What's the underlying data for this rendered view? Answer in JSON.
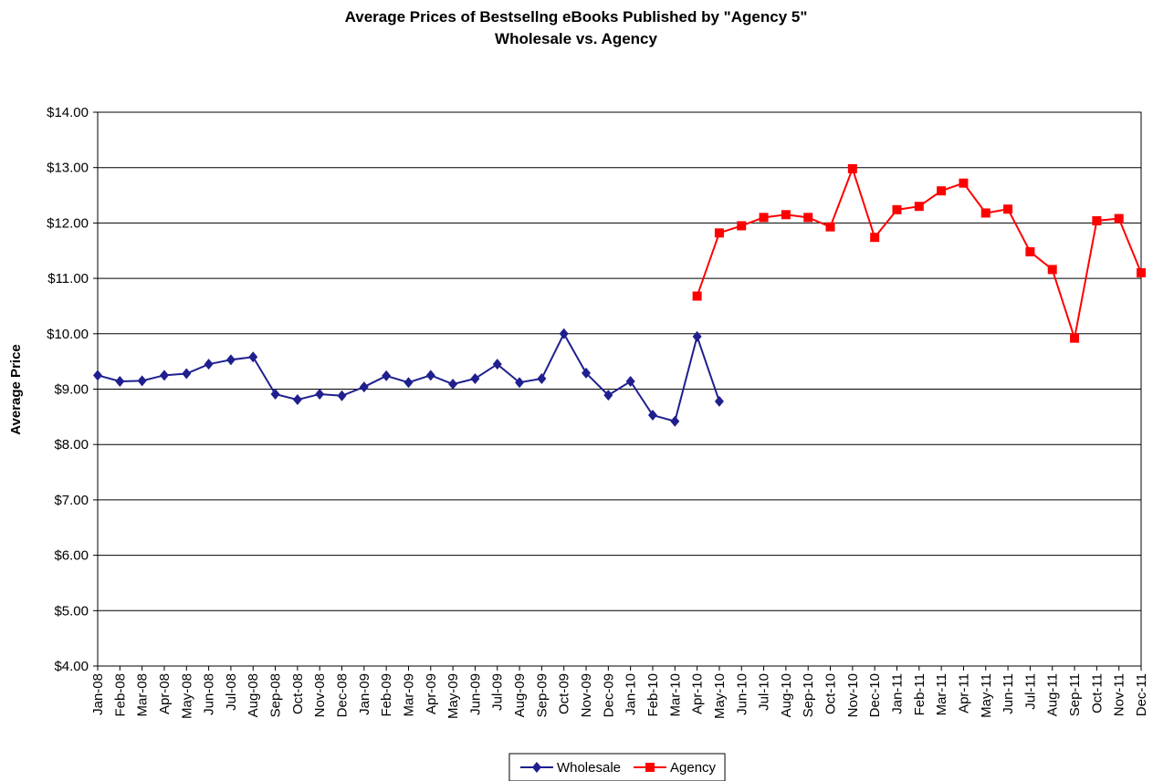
{
  "chart_data": {
    "type": "line",
    "title": "Average Prices of Bestsellng eBooks Published by \"Agency 5\"",
    "subtitle": "Wholesale vs. Agency",
    "y_label": "Average Price",
    "categories": [
      "Jan-08",
      "Feb-08",
      "Mar-08",
      "Apr-08",
      "May-08",
      "Jun-08",
      "Jul-08",
      "Aug-08",
      "Sep-08",
      "Oct-08",
      "Nov-08",
      "Dec-08",
      "Jan-09",
      "Feb-09",
      "Mar-09",
      "Apr-09",
      "May-09",
      "Jun-09",
      "Jul-09",
      "Aug-09",
      "Sep-09",
      "Oct-09",
      "Nov-09",
      "Dec-09",
      "Jan-10",
      "Feb-10",
      "Mar-10",
      "Apr-10",
      "May-10",
      "Jun-10",
      "Jul-10",
      "Aug-10",
      "Sep-10",
      "Oct-10",
      "Nov-10",
      "Dec-10",
      "Jan-11",
      "Feb-11",
      "Mar-11",
      "Apr-11",
      "May-11",
      "Jun-11",
      "Jul-11",
      "Aug-11",
      "Sep-11",
      "Oct-11",
      "Nov-11",
      "Dec-11"
    ],
    "series": [
      {
        "name": "Wholesale",
        "color": "#1f1f8f",
        "marker": "diamond",
        "values": [
          9.25,
          9.14,
          9.15,
          9.25,
          9.28,
          9.45,
          9.53,
          9.58,
          8.91,
          8.81,
          8.91,
          8.88,
          9.04,
          9.24,
          9.12,
          9.25,
          9.09,
          9.19,
          9.45,
          9.12,
          9.19,
          10.0,
          9.29,
          8.89,
          9.14,
          8.53,
          8.42,
          9.95,
          8.78,
          null,
          null,
          null,
          null,
          null,
          null,
          null,
          null,
          null,
          null,
          null,
          null,
          null,
          null,
          null,
          null,
          null,
          null,
          null
        ]
      },
      {
        "name": "Agency",
        "color": "#ff0000",
        "marker": "square",
        "values": [
          null,
          null,
          null,
          null,
          null,
          null,
          null,
          null,
          null,
          null,
          null,
          null,
          null,
          null,
          null,
          null,
          null,
          null,
          null,
          null,
          null,
          null,
          null,
          null,
          null,
          null,
          null,
          10.68,
          11.82,
          11.95,
          12.1,
          12.15,
          12.1,
          11.93,
          12.98,
          11.74,
          12.24,
          12.3,
          12.58,
          12.72,
          12.18,
          12.25,
          11.48,
          11.16,
          9.92,
          12.04,
          12.08,
          11.1
        ]
      }
    ],
    "ylim": [
      4,
      14
    ],
    "yticks": [
      {
        "value": 4,
        "label": "$4.00"
      },
      {
        "value": 5,
        "label": "$5.00"
      },
      {
        "value": 6,
        "label": "$6.00"
      },
      {
        "value": 7,
        "label": "$7.00"
      },
      {
        "value": 8,
        "label": "$8.00"
      },
      {
        "value": 9,
        "label": "$9.00"
      },
      {
        "value": 10,
        "label": "$10.00"
      },
      {
        "value": 11,
        "label": "$11.00"
      },
      {
        "value": 12,
        "label": "$12.00"
      },
      {
        "value": 13,
        "label": "$13.00"
      },
      {
        "value": 14,
        "label": "$14.00"
      }
    ],
    "grid": true,
    "legend": "bottom"
  }
}
